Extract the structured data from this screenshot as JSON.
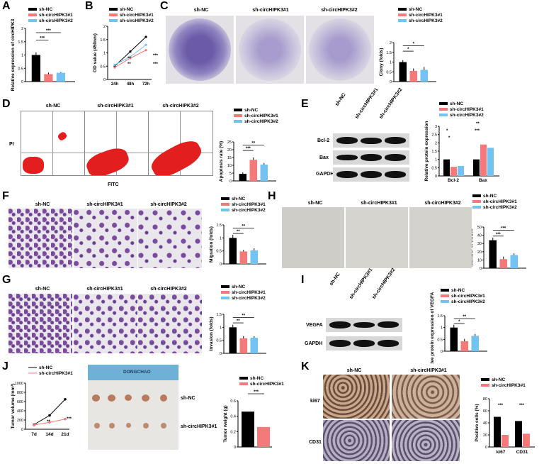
{
  "colors": {
    "nc": "#000000",
    "c1": "#f47a7a",
    "c2": "#72c3f2"
  },
  "groups": {
    "nc": "sh-NC",
    "c1": "sh-circHIPK3#1",
    "c2": "sh-circHIPK3#2"
  },
  "panels": {
    "A": {
      "label": "A",
      "ylabel": "Relative expression of circHIPK3",
      "sig": [
        "***",
        "***"
      ]
    },
    "B": {
      "label": "B",
      "ylabel": "OD value (450nm)",
      "xticks": [
        "24h",
        "48h",
        "72h"
      ],
      "sig": [
        "***",
        "***",
        "**",
        "**"
      ]
    },
    "C": {
      "label": "C",
      "ylabel": "Clony (folds)",
      "sig": [
        "*",
        "*"
      ]
    },
    "D": {
      "label": "D",
      "axis_y": "PI",
      "axis_x": "FITC",
      "ylabel": "Apoptosis rate (%)",
      "sig": [
        "***",
        "**"
      ]
    },
    "E": {
      "label": "E",
      "blots": [
        "Bcl-2",
        "Bax",
        "GAPDH"
      ],
      "ylabel": "Relative protein expression",
      "xticks": [
        "Bcl-2",
        "Bax"
      ],
      "sig": [
        "*",
        "*",
        "**",
        "***"
      ]
    },
    "F": {
      "label": "F",
      "ylabel": "Migration (folds)",
      "sig": [
        "**",
        "**"
      ]
    },
    "G": {
      "label": "G",
      "ylabel": "Invasion (folds)",
      "sig": [
        "**",
        "**"
      ]
    },
    "H": {
      "label": "H",
      "ylabel": "Number of nodes",
      "sig": [
        "***",
        "***"
      ]
    },
    "I": {
      "label": "I",
      "blots": [
        "VEGFA",
        "GAPDH"
      ],
      "ylabel": "Relative protein expression of VEGFA",
      "sig": [
        "*",
        "**"
      ]
    },
    "J": {
      "label": "J",
      "ylabel": "Tumor volume (mm³)",
      "xticks": [
        "7d",
        "14d",
        "21d"
      ],
      "sig": [
        "**",
        "***"
      ],
      "ruler": "DONGCHAO",
      "rows": [
        "sh-NC",
        "sh-circHIPK3#1"
      ],
      "bar_ylabel": "Tumor weight (g)",
      "bar_sig": "***"
    },
    "K": {
      "label": "K",
      "rows": [
        "ki67",
        "CD31"
      ],
      "ylabel": "Positive cells (%)",
      "xticks": [
        "ki67",
        "CD31"
      ],
      "sig": [
        "***",
        "***"
      ]
    }
  },
  "chart_data": [
    {
      "type": "bar",
      "panel": "A",
      "ylabel": "Relative expression of circHIPK3",
      "ylim": [
        0,
        2.0
      ],
      "yticks": [
        0.0,
        0.5,
        1.0,
        1.5,
        2.0
      ],
      "categories": [
        "sh-NC",
        "sh-circHIPK3#1",
        "sh-circHIPK3#2"
      ],
      "values": [
        1.0,
        0.28,
        0.33
      ],
      "errors": [
        0.1,
        0.06,
        0.03
      ]
    },
    {
      "type": "line",
      "panel": "B",
      "ylabel": "OD value (450nm)",
      "ylim": [
        0.0,
        2.0
      ],
      "yticks": [
        0.0,
        0.5,
        1.0,
        1.5,
        2.0
      ],
      "x": [
        "24h",
        "48h",
        "72h"
      ],
      "series": [
        {
          "name": "sh-NC",
          "values": [
            0.5,
            1.05,
            1.6
          ]
        },
        {
          "name": "sh-circHIPK3#1",
          "values": [
            0.45,
            0.8,
            1.1
          ]
        },
        {
          "name": "sh-circHIPK3#2",
          "values": [
            0.55,
            0.85,
            1.3
          ]
        }
      ]
    },
    {
      "type": "bar",
      "panel": "C",
      "ylabel": "Clony (folds)",
      "ylim": [
        0,
        2.0
      ],
      "yticks": [
        0.0,
        0.5,
        1.0,
        1.5,
        2.0
      ],
      "categories": [
        "sh-NC",
        "sh-circHIPK3#1",
        "sh-circHIPK3#2"
      ],
      "values": [
        1.0,
        0.55,
        0.6
      ],
      "errors": [
        0.1,
        0.12,
        0.15
      ]
    },
    {
      "type": "bar",
      "panel": "D",
      "ylabel": "Apoptosis rate (%)",
      "ylim": [
        0,
        25
      ],
      "yticks": [
        0,
        5,
        10,
        15,
        20,
        25
      ],
      "categories": [
        "sh-NC",
        "sh-circHIPK3#1",
        "sh-circHIPK3#2"
      ],
      "values": [
        4.5,
        13.5,
        10.5
      ],
      "errors": [
        1,
        1.5,
        1
      ]
    },
    {
      "type": "bar",
      "panel": "E",
      "ylabel": "Relative protein expression",
      "ylim": [
        0,
        3.0
      ],
      "yticks": [
        0.0,
        0.5,
        1.0,
        1.5,
        2.0,
        2.5,
        3.0
      ],
      "categories": [
        "Bcl-2",
        "Bax"
      ],
      "series": [
        {
          "name": "sh-NC",
          "values": [
            1.0,
            1.0
          ]
        },
        {
          "name": "sh-circHIPK3#1",
          "values": [
            0.55,
            1.9
          ]
        },
        {
          "name": "sh-circHIPK3#2",
          "values": [
            0.6,
            1.7
          ]
        }
      ]
    },
    {
      "type": "bar",
      "panel": "F",
      "ylabel": "Migration (folds)",
      "ylim": [
        0,
        1.5
      ],
      "yticks": [
        0.0,
        0.5,
        1.0,
        1.5
      ],
      "categories": [
        "sh-NC",
        "sh-circHIPK3#1",
        "sh-circHIPK3#2"
      ],
      "values": [
        1.0,
        0.48,
        0.52
      ],
      "errors": [
        0.12,
        0.06,
        0.08
      ]
    },
    {
      "type": "bar",
      "panel": "G",
      "ylabel": "Invasion (folds)",
      "ylim": [
        0,
        1.5
      ],
      "yticks": [
        0.0,
        0.5,
        1.0,
        1.5
      ],
      "categories": [
        "sh-NC",
        "sh-circHIPK3#1",
        "sh-circHIPK3#2"
      ],
      "values": [
        1.0,
        0.58,
        0.6
      ],
      "errors": [
        0.1,
        0.08,
        0.06
      ]
    },
    {
      "type": "bar",
      "panel": "H",
      "ylabel": "Number of nodes",
      "ylim": [
        0,
        50
      ],
      "yticks": [
        0,
        10,
        20,
        30,
        40,
        50
      ],
      "categories": [
        "sh-NC",
        "sh-circHIPK3#1",
        "sh-circHIPK3#2"
      ],
      "values": [
        34,
        11,
        16
      ],
      "errors": [
        3,
        3,
        2
      ]
    },
    {
      "type": "bar",
      "panel": "I",
      "ylabel": "Relative protein expression of VEGFA",
      "ylim": [
        0,
        1.5
      ],
      "yticks": [
        0.0,
        0.5,
        1.0,
        1.5
      ],
      "categories": [
        "sh-NC",
        "sh-circHIPK3#1",
        "sh-circHIPK3#2"
      ],
      "values": [
        1.0,
        0.42,
        0.65
      ],
      "errors": [
        0.12,
        0.1,
        0.08
      ]
    },
    {
      "type": "line",
      "panel": "J",
      "ylabel": "Tumor volume (mm³)",
      "ylim": [
        0,
        1000
      ],
      "yticks": [
        0,
        200,
        400,
        600,
        800,
        1000
      ],
      "x": [
        "7d",
        "14d",
        "21d"
      ],
      "series": [
        {
          "name": "sh-NC",
          "values": [
            100,
            300,
            650
          ]
        },
        {
          "name": "sh-circHIPK3#1",
          "values": [
            90,
            150,
            220
          ]
        }
      ]
    },
    {
      "type": "bar",
      "panel": "J2",
      "ylabel": "Tumor weight (g)",
      "ylim": [
        0,
        0.6
      ],
      "yticks": [
        0.0,
        0.2,
        0.4,
        0.6
      ],
      "categories": [
        "sh-NC",
        "sh-circHIPK3#1"
      ],
      "values": [
        0.46,
        0.26
      ],
      "errors": [
        0.02,
        0.02
      ]
    },
    {
      "type": "bar",
      "panel": "K",
      "ylabel": "Positive cells (%)",
      "ylim": [
        0,
        80
      ],
      "yticks": [
        0,
        20,
        40,
        60,
        80
      ],
      "categories": [
        "ki67",
        "CD31"
      ],
      "series": [
        {
          "name": "sh-NC",
          "values": [
            50,
            43
          ]
        },
        {
          "name": "sh-circHIPK3#1",
          "values": [
            20,
            22
          ]
        }
      ]
    }
  ]
}
